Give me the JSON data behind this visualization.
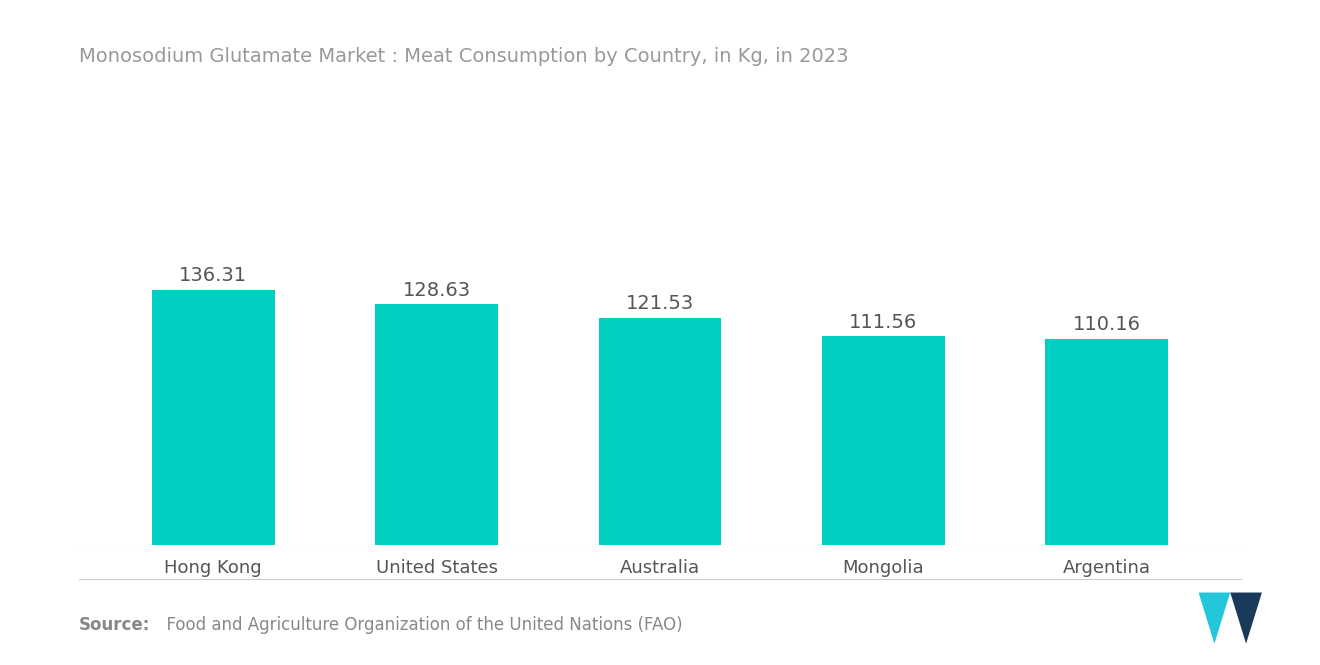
{
  "title": "Monosodium Glutamate Market : Meat Consumption by Country, in Kg, in 2023",
  "categories": [
    "Hong Kong",
    "United States",
    "Australia",
    "Mongolia",
    "Argentina"
  ],
  "values": [
    136.31,
    128.63,
    121.53,
    111.56,
    110.16
  ],
  "bar_color": "#00CEC0",
  "label_color": "#555555",
  "title_color": "#999999",
  "source_bold": "Source:",
  "source_text": "  Food and Agriculture Organization of the United Nations (FAO)",
  "source_color": "#888888",
  "background_color": "#ffffff",
  "ylim": [
    0,
    220
  ],
  "bar_width": 0.55,
  "label_fontsize": 14,
  "title_fontsize": 14,
  "tick_fontsize": 13,
  "source_fontsize": 12
}
